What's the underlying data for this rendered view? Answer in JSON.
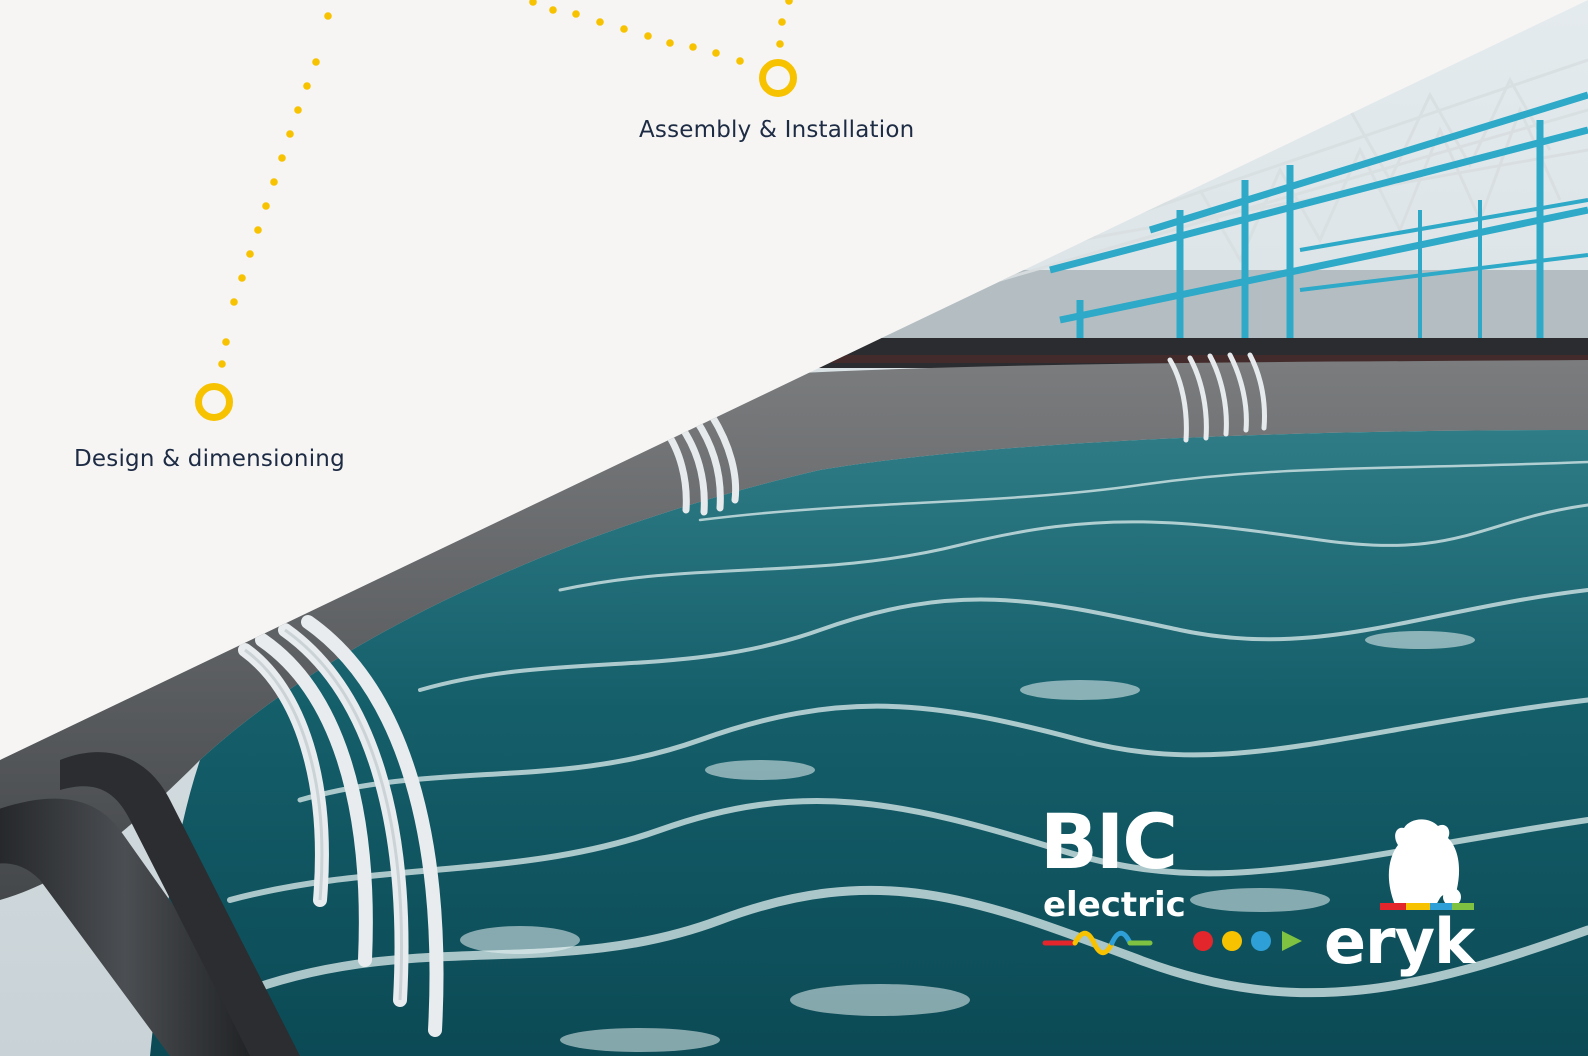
{
  "steps": [
    {
      "label": "Design & dimensioning"
    },
    {
      "label": "Assembly & Installation"
    }
  ],
  "logos": {
    "bic": {
      "line1": "BIC",
      "line2": "electric"
    },
    "eryk": {
      "wordmark": "eryk"
    }
  },
  "colors": {
    "background": "#f6f5f3",
    "accent": "#f7c200",
    "text": "#1d2b44",
    "water": "#0f5a66"
  }
}
